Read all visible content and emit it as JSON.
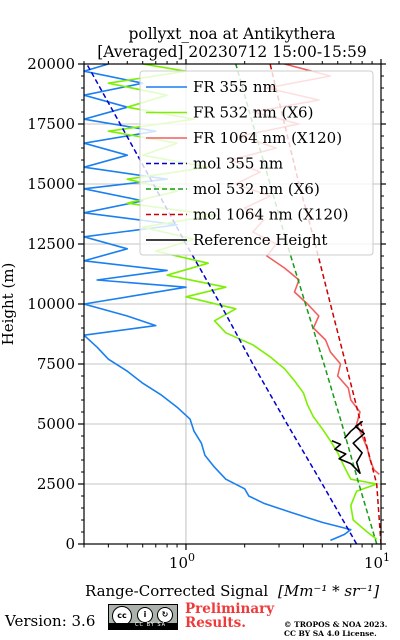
{
  "chart_data": {
    "type": "line",
    "title_line1": "pollyxt_noa at Antikythera",
    "title_line2": "[Averaged] 20230712 15:00-15:59",
    "ylabel": "Height (m)",
    "xlabel_prefix": "Range-Corrected Signal",
    "xlabel_units": "[Mm⁻¹ * sr⁻¹]",
    "xscale": "log",
    "xlim": [
      0.3,
      10
    ],
    "ylim": [
      0,
      20000
    ],
    "grid": true,
    "legend_placement": "upper-right",
    "x_ticks": [
      {
        "label_base": "10",
        "label_exp": "0",
        "value": 1
      },
      {
        "label_base": "10",
        "label_exp": "1",
        "value": 10
      }
    ],
    "y_ticks": [
      "0",
      "2500",
      "5000",
      "7500",
      "10000",
      "12500",
      "15000",
      "17500",
      "20000"
    ],
    "series": [
      {
        "name": "FR 355 nm",
        "color": "#1a7ff0",
        "style": "solid",
        "points": [
          [
            5.5,
            150
          ],
          [
            6.5,
            400
          ],
          [
            7.0,
            600
          ],
          [
            5.0,
            900
          ],
          [
            3.5,
            1300
          ],
          [
            2.5,
            1700
          ],
          [
            2.1,
            2000
          ],
          [
            2.0,
            2300
          ],
          [
            1.6,
            2700
          ],
          [
            1.4,
            3200
          ],
          [
            1.25,
            3700
          ],
          [
            1.2,
            4200
          ],
          [
            1.1,
            4700
          ],
          [
            1.05,
            5200
          ],
          [
            0.9,
            5700
          ],
          [
            0.75,
            6200
          ],
          [
            0.6,
            6700
          ],
          [
            0.5,
            7200
          ],
          [
            0.4,
            7700
          ],
          [
            0.35,
            8200
          ],
          [
            0.3,
            8700
          ],
          [
            0.7,
            9100
          ],
          [
            0.5,
            9500
          ],
          [
            0.3,
            10000
          ],
          [
            1.0,
            10700
          ],
          [
            0.35,
            11000
          ],
          [
            0.8,
            11400
          ],
          [
            0.3,
            11800
          ],
          [
            0.5,
            12300
          ],
          [
            0.3,
            12800
          ],
          [
            0.9,
            13300
          ],
          [
            0.3,
            13800
          ],
          [
            0.6,
            14300
          ],
          [
            0.3,
            14800
          ],
          [
            0.8,
            15200
          ],
          [
            0.3,
            15700
          ],
          [
            0.5,
            16200
          ],
          [
            0.3,
            16700
          ],
          [
            0.7,
            17200
          ],
          [
            0.3,
            17700
          ],
          [
            0.5,
            18200
          ],
          [
            0.3,
            18700
          ],
          [
            0.6,
            19200
          ],
          [
            0.3,
            19700
          ],
          [
            0.4,
            20000
          ]
        ]
      },
      {
        "name": "FR 532 nm (X6)",
        "color": "#7cf000",
        "style": "solid",
        "points": [
          [
            9.5,
            200
          ],
          [
            8.5,
            500
          ],
          [
            7.2,
            1000
          ],
          [
            7.0,
            1600
          ],
          [
            7.5,
            2200
          ],
          [
            9.5,
            2500
          ],
          [
            7.0,
            2700
          ],
          [
            6.5,
            3200
          ],
          [
            6.0,
            3800
          ],
          [
            5.5,
            4300
          ],
          [
            5.0,
            4800
          ],
          [
            4.5,
            5300
          ],
          [
            4.2,
            5800
          ],
          [
            4.0,
            6300
          ],
          [
            3.6,
            6800
          ],
          [
            3.2,
            7300
          ],
          [
            2.7,
            7800
          ],
          [
            2.2,
            8300
          ],
          [
            1.6,
            8800
          ],
          [
            1.4,
            9300
          ],
          [
            1.8,
            9800
          ],
          [
            1.0,
            10300
          ],
          [
            1.6,
            10700
          ],
          [
            0.8,
            11200
          ],
          [
            1.3,
            11700
          ],
          [
            0.7,
            12200
          ],
          [
            1.1,
            12700
          ],
          [
            0.6,
            13200
          ],
          [
            1.4,
            13700
          ],
          [
            0.5,
            14200
          ],
          [
            0.9,
            14700
          ],
          [
            0.5,
            15200
          ],
          [
            1.3,
            15700
          ],
          [
            0.6,
            16200
          ],
          [
            0.9,
            16700
          ],
          [
            0.4,
            17200
          ],
          [
            1.1,
            17700
          ],
          [
            0.5,
            18200
          ],
          [
            0.8,
            18700
          ],
          [
            0.4,
            19200
          ],
          [
            1.0,
            19700
          ],
          [
            0.6,
            20000
          ]
        ]
      },
      {
        "name": "FR 1064 nm (X120)",
        "color": "#f25f5f",
        "style": "solid",
        "points": [
          [
            9.8,
            2900
          ],
          [
            9.2,
            3100
          ],
          [
            8.8,
            3500
          ],
          [
            8.5,
            4000
          ],
          [
            8.0,
            4500
          ],
          [
            7.5,
            5000
          ],
          [
            7.8,
            5500
          ],
          [
            7.0,
            6000
          ],
          [
            6.8,
            6500
          ],
          [
            6.0,
            7000
          ],
          [
            6.2,
            7500
          ],
          [
            5.5,
            8000
          ],
          [
            5.2,
            8500
          ],
          [
            4.5,
            9000
          ],
          [
            4.8,
            9500
          ],
          [
            4.2,
            10000
          ],
          [
            3.6,
            10500
          ],
          [
            3.8,
            11000
          ],
          [
            3.2,
            11500
          ],
          [
            2.6,
            12000
          ],
          [
            2.9,
            12500
          ],
          [
            2.2,
            13000
          ],
          [
            2.5,
            13500
          ],
          [
            2.0,
            14000
          ],
          [
            2.7,
            14500
          ],
          [
            1.8,
            15000
          ],
          [
            2.4,
            15500
          ],
          [
            1.7,
            16000
          ],
          [
            2.9,
            16500
          ],
          [
            1.9,
            17000
          ],
          [
            3.8,
            17500
          ],
          [
            2.2,
            18000
          ],
          [
            4.8,
            18500
          ],
          [
            2.6,
            19000
          ],
          [
            5.5,
            19500
          ],
          [
            3.2,
            20000
          ]
        ]
      },
      {
        "name": "mol 355 nm",
        "color": "#0000cc",
        "style": "dashed",
        "points": [
          [
            7.5,
            0
          ],
          [
            5.0,
            2500
          ],
          [
            3.3,
            5000
          ],
          [
            2.2,
            7500
          ],
          [
            1.5,
            10000
          ],
          [
            1.0,
            12500
          ],
          [
            0.68,
            15000
          ],
          [
            0.46,
            17500
          ],
          [
            0.31,
            20000
          ]
        ]
      },
      {
        "name": "mol 532 nm (X6)",
        "color": "#169c16",
        "style": "dashed",
        "points": [
          [
            9.5,
            0
          ],
          [
            7.7,
            2500
          ],
          [
            6.3,
            5000
          ],
          [
            5.1,
            7500
          ],
          [
            4.1,
            10000
          ],
          [
            3.3,
            12500
          ],
          [
            2.7,
            15000
          ],
          [
            2.2,
            17500
          ],
          [
            1.8,
            20000
          ]
        ]
      },
      {
        "name": "mol 1064 nm (X120)",
        "color": "#cc0000",
        "style": "dashed",
        "points": [
          [
            10.0,
            0
          ],
          [
            9.5,
            2500
          ],
          [
            7.9,
            5000
          ],
          [
            6.6,
            7500
          ],
          [
            5.5,
            10000
          ],
          [
            4.6,
            12500
          ],
          [
            3.8,
            15000
          ],
          [
            3.2,
            17500
          ],
          [
            2.7,
            20000
          ]
        ]
      },
      {
        "name": "Reference Height",
        "color": "#000000",
        "style": "solid",
        "points": [
          [
            5.6,
            4300
          ],
          [
            6.2,
            4150
          ],
          [
            5.8,
            3950
          ],
          [
            6.6,
            3750
          ],
          [
            6.1,
            3550
          ],
          [
            7.0,
            3350
          ],
          [
            7.4,
            3150
          ],
          [
            7.8,
            2950
          ],
          [
            7.5,
            3400
          ],
          [
            8.0,
            3800
          ],
          [
            7.2,
            4200
          ],
          [
            8.2,
            4600
          ],
          [
            7.4,
            4900
          ],
          [
            8.0,
            5100
          ],
          [
            7.0,
            4700
          ],
          [
            6.5,
            4400
          ]
        ]
      }
    ]
  },
  "footer": {
    "version": "Version: 3.6",
    "cc_license": "CC BY SA",
    "preliminary_line1": "Preliminary",
    "preliminary_line2": "Results.",
    "credit_line1": "© TROPOS & NOA 2023.",
    "credit_line2": "CC BY SA 4.0 License."
  }
}
